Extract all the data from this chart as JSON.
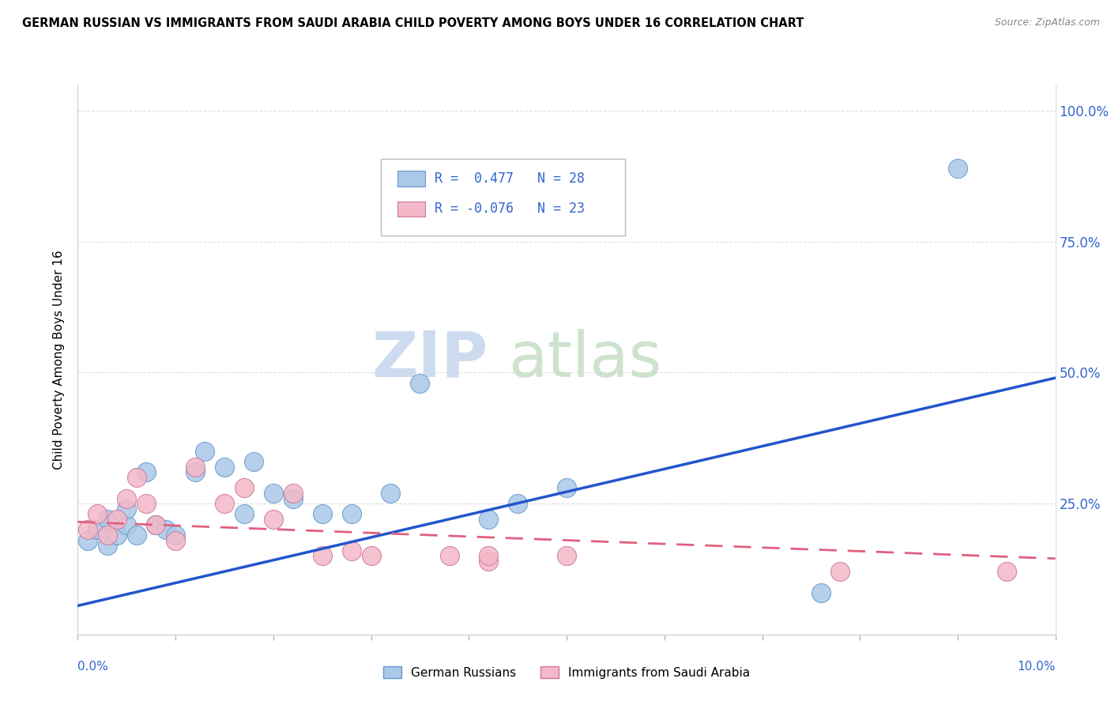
{
  "title": "GERMAN RUSSIAN VS IMMIGRANTS FROM SAUDI ARABIA CHILD POVERTY AMONG BOYS UNDER 16 CORRELATION CHART",
  "source": "Source: ZipAtlas.com",
  "ylabel": "Child Poverty Among Boys Under 16",
  "yticks": [
    0.0,
    0.25,
    0.5,
    0.75,
    1.0
  ],
  "ytick_labels": [
    "",
    "25.0%",
    "50.0%",
    "75.0%",
    "100.0%"
  ],
  "xlim": [
    0.0,
    0.1
  ],
  "ylim": [
    0.0,
    1.05
  ],
  "blue_R": 0.477,
  "blue_N": 28,
  "pink_R": -0.076,
  "pink_N": 23,
  "blue_color": "#aac8e8",
  "pink_color": "#f4b8c8",
  "trend_blue": "#2255cc",
  "trend_pink": "#e06080",
  "legend_label_blue": "German Russians",
  "legend_label_pink": "Immigrants from Saudi Arabia",
  "blue_scatter_x": [
    0.001,
    0.002,
    0.003,
    0.003,
    0.004,
    0.005,
    0.005,
    0.006,
    0.007,
    0.008,
    0.009,
    0.01,
    0.012,
    0.013,
    0.015,
    0.017,
    0.018,
    0.02,
    0.022,
    0.025,
    0.028,
    0.032,
    0.035,
    0.042,
    0.045,
    0.05,
    0.076,
    0.09
  ],
  "blue_scatter_y": [
    0.18,
    0.2,
    0.17,
    0.22,
    0.19,
    0.21,
    0.24,
    0.19,
    0.31,
    0.21,
    0.2,
    0.19,
    0.31,
    0.35,
    0.32,
    0.23,
    0.33,
    0.27,
    0.26,
    0.23,
    0.23,
    0.27,
    0.48,
    0.22,
    0.25,
    0.28,
    0.08,
    0.89
  ],
  "pink_scatter_x": [
    0.001,
    0.002,
    0.003,
    0.004,
    0.005,
    0.006,
    0.007,
    0.008,
    0.01,
    0.012,
    0.015,
    0.017,
    0.02,
    0.022,
    0.025,
    0.028,
    0.03,
    0.038,
    0.042,
    0.042,
    0.05,
    0.078,
    0.095
  ],
  "pink_scatter_y": [
    0.2,
    0.23,
    0.19,
    0.22,
    0.26,
    0.3,
    0.25,
    0.21,
    0.18,
    0.32,
    0.25,
    0.28,
    0.22,
    0.27,
    0.15,
    0.16,
    0.15,
    0.15,
    0.14,
    0.15,
    0.15,
    0.12,
    0.12
  ],
  "blue_trend_x": [
    0.0,
    0.1
  ],
  "blue_trend_y": [
    0.055,
    0.49
  ],
  "pink_trend_x": [
    0.0,
    0.1
  ],
  "pink_trend_y": [
    0.215,
    0.145
  ]
}
